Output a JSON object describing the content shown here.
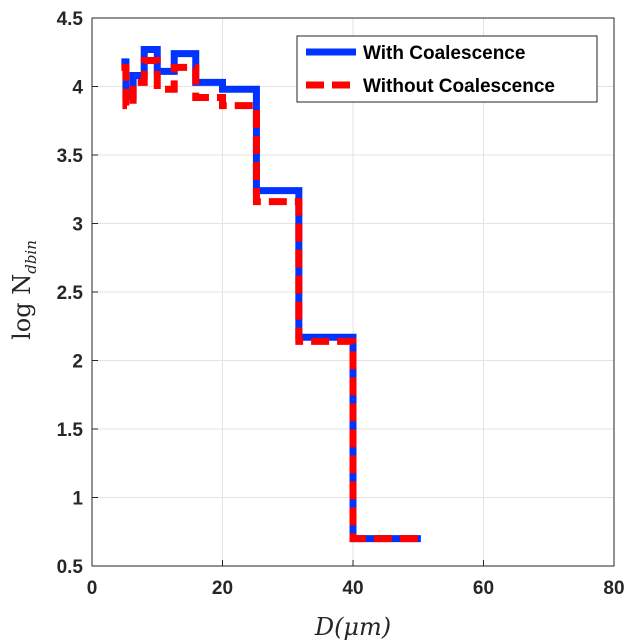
{
  "chart_data": {
    "type": "line",
    "step": true,
    "xlabel": "D(μm)",
    "ylabel_main": "log N",
    "ylabel_sub": "dbin",
    "xlim": [
      0,
      80
    ],
    "ylim": [
      0.5,
      4.5
    ],
    "xticks": [
      "0",
      "20",
      "40",
      "60",
      "80"
    ],
    "yticks": [
      "0.5",
      "1",
      "1.5",
      "2",
      "2.5",
      "3",
      "3.5",
      "4",
      "4.5"
    ],
    "grid": true,
    "legend_position": "top-right",
    "series": [
      {
        "name": "With Coalescence",
        "color": "#0033ff",
        "dash": "solid",
        "x": [
          4.5,
          5.2,
          6.3,
          8.0,
          10.0,
          12.6,
          15.9,
          20.0,
          25.2,
          31.7,
          40.0,
          50.4
        ],
        "y": [
          4.18,
          3.93,
          4.08,
          4.27,
          4.11,
          4.24,
          4.03,
          3.98,
          3.24,
          2.17,
          0.7,
          0.7
        ]
      },
      {
        "name": "Without Coalescence",
        "color": "#ff0000",
        "dash": "dashed",
        "x": [
          4.5,
          5.2,
          6.3,
          8.0,
          10.0,
          12.6,
          15.9,
          20.0,
          25.2,
          31.7,
          40.0,
          50.4
        ],
        "y": [
          4.14,
          3.86,
          4.03,
          4.19,
          3.98,
          4.14,
          3.92,
          3.86,
          3.16,
          2.14,
          0.7,
          0.7
        ]
      }
    ]
  }
}
